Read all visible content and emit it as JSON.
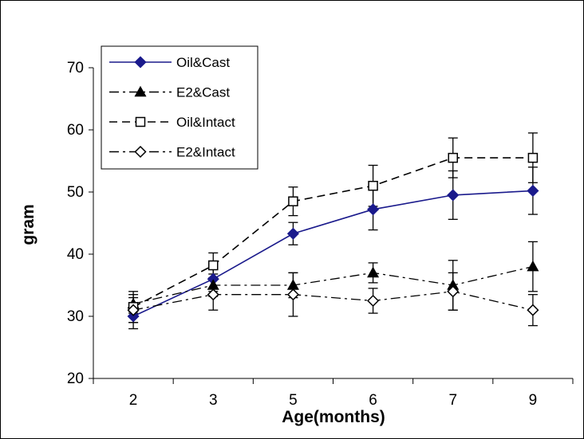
{
  "chart_data": {
    "type": "line",
    "xlabel": "Age(months)",
    "ylabel": "gram",
    "categories": [
      "2",
      "3",
      "5",
      "6",
      "7",
      "9"
    ],
    "ylim": [
      20,
      70
    ],
    "yticks": [
      20,
      30,
      40,
      50,
      60,
      70
    ],
    "grid": false,
    "legend_position": "top-left",
    "series": [
      {
        "name": "Oil&Cast",
        "values": [
          30.0,
          36.0,
          43.3,
          47.2,
          49.5,
          50.2
        ],
        "errors": [
          2.0,
          2.0,
          1.8,
          3.3,
          3.9,
          3.8
        ],
        "marker": "diamond-filled",
        "line": "solid",
        "color": "#1a1a8c"
      },
      {
        "name": "E2&Cast",
        "values": [
          32.0,
          35.0,
          35.0,
          37.0,
          35.0,
          38.0
        ],
        "errors": [
          1.5,
          1.8,
          2.0,
          1.6,
          4.0,
          4.0
        ],
        "marker": "triangle-filled",
        "line": "dash-dot",
        "color": "#000000"
      },
      {
        "name": "Oil&Intact",
        "values": [
          31.5,
          38.2,
          48.5,
          51.0,
          55.5,
          55.5
        ],
        "errors": [
          2.5,
          2.0,
          2.3,
          3.3,
          3.2,
          4.0
        ],
        "marker": "square-open",
        "line": "dashed",
        "color": "#000000"
      },
      {
        "name": "E2&Intact",
        "values": [
          31.0,
          33.5,
          33.5,
          32.5,
          34.0,
          31.0
        ],
        "errors": [
          2.0,
          2.5,
          3.5,
          2.0,
          3.0,
          2.5
        ],
        "marker": "diamond-open",
        "line": "dash-dot",
        "color": "#000000"
      }
    ]
  }
}
